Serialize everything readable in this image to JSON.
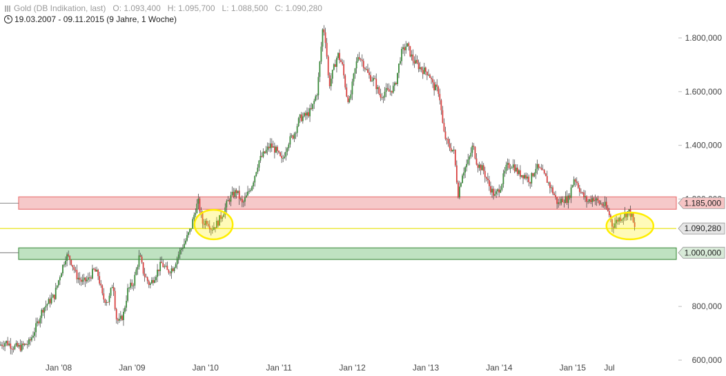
{
  "header": {
    "icon": "candlestick-icon",
    "instrument": "Gold (DB Indikation, last)",
    "ohlc": "O: 1.093,400   H: 1.095,700   L: 1.088,500   C: 1.090,280",
    "range_icon": "clock-icon",
    "range": "19.03.2007 - 09.11.2015 (9 Jahre, 1 Woche)"
  },
  "chart_data": {
    "type": "candlestick",
    "title": "Gold (DB Indikation, last)",
    "interval": "1 Woche",
    "x_range": [
      "2007-03-19",
      "2015-11-09"
    ],
    "ylim": [
      600000,
      1930000
    ],
    "y_ticks": [
      {
        "value": 800000,
        "label": "800,000"
      },
      {
        "value": 1000000,
        "label": "1.000,000"
      },
      {
        "value": 1200000,
        "label": "1.200,000"
      },
      {
        "value": 1400000,
        "label": "1.400,000"
      },
      {
        "value": 1600000,
        "label": "1.600,000"
      },
      {
        "value": 1800000,
        "label": "1.800,000"
      },
      {
        "value": 600000,
        "label": "600,000"
      }
    ],
    "x_ticks": [
      {
        "value": 2008.0,
        "label": "Jan '08"
      },
      {
        "value": 2009.0,
        "label": "Jan '09"
      },
      {
        "value": 2010.0,
        "label": "Jan '10"
      },
      {
        "value": 2011.0,
        "label": "Jan '11"
      },
      {
        "value": 2012.0,
        "label": "Jan '12"
      },
      {
        "value": 2013.0,
        "label": "Jan '13"
      },
      {
        "value": 2014.0,
        "label": "Jan '14"
      },
      {
        "value": 2015.0,
        "label": "Jan '15"
      },
      {
        "value": 2015.5,
        "label": "Jul"
      }
    ],
    "price_path": [
      [
        2007.21,
        655
      ],
      [
        2007.3,
        668
      ],
      [
        2007.4,
        650
      ],
      [
        2007.5,
        648
      ],
      [
        2007.62,
        665
      ],
      [
        2007.72,
        730
      ],
      [
        2007.8,
        790
      ],
      [
        2007.88,
        815
      ],
      [
        2007.96,
        840
      ],
      [
        2008.04,
        920
      ],
      [
        2008.12,
        990
      ],
      [
        2008.18,
        975
      ],
      [
        2008.26,
        915
      ],
      [
        2008.34,
        890
      ],
      [
        2008.42,
        900
      ],
      [
        2008.5,
        935
      ],
      [
        2008.56,
        915
      ],
      [
        2008.62,
        830
      ],
      [
        2008.7,
        820
      ],
      [
        2008.76,
        895
      ],
      [
        2008.8,
        760
      ],
      [
        2008.84,
        740
      ],
      [
        2008.9,
        770
      ],
      [
        2008.96,
        860
      ],
      [
        2009.04,
        890
      ],
      [
        2009.12,
        990
      ],
      [
        2009.18,
        920
      ],
      [
        2009.26,
        880
      ],
      [
        2009.34,
        920
      ],
      [
        2009.42,
        960
      ],
      [
        2009.5,
        930
      ],
      [
        2009.58,
        945
      ],
      [
        2009.66,
        1000
      ],
      [
        2009.74,
        1040
      ],
      [
        2009.82,
        1090
      ],
      [
        2009.88,
        1160
      ],
      [
        2009.92,
        1190
      ],
      [
        2009.98,
        1110
      ],
      [
        2010.04,
        1120
      ],
      [
        2010.1,
        1090
      ],
      [
        2010.18,
        1110
      ],
      [
        2010.26,
        1150
      ],
      [
        2010.34,
        1200
      ],
      [
        2010.44,
        1230
      ],
      [
        2010.52,
        1180
      ],
      [
        2010.58,
        1210
      ],
      [
        2010.66,
        1260
      ],
      [
        2010.74,
        1340
      ],
      [
        2010.82,
        1370
      ],
      [
        2010.9,
        1400
      ],
      [
        2010.98,
        1380
      ],
      [
        2011.06,
        1340
      ],
      [
        2011.14,
        1410
      ],
      [
        2011.22,
        1440
      ],
      [
        2011.3,
        1500
      ],
      [
        2011.38,
        1510
      ],
      [
        2011.46,
        1530
      ],
      [
        2011.54,
        1600
      ],
      [
        2011.58,
        1720
      ],
      [
        2011.62,
        1850
      ],
      [
        2011.66,
        1780
      ],
      [
        2011.7,
        1620
      ],
      [
        2011.76,
        1680
      ],
      [
        2011.82,
        1740
      ],
      [
        2011.88,
        1700
      ],
      [
        2011.94,
        1590
      ],
      [
        2011.98,
        1560
      ],
      [
        2012.04,
        1660
      ],
      [
        2012.1,
        1740
      ],
      [
        2012.16,
        1710
      ],
      [
        2012.24,
        1660
      ],
      [
        2012.32,
        1640
      ],
      [
        2012.4,
        1580
      ],
      [
        2012.46,
        1600
      ],
      [
        2012.52,
        1600
      ],
      [
        2012.6,
        1620
      ],
      [
        2012.68,
        1740
      ],
      [
        2012.76,
        1775
      ],
      [
        2012.84,
        1720
      ],
      [
        2012.9,
        1700
      ],
      [
        2012.98,
        1680
      ],
      [
        2013.06,
        1670
      ],
      [
        2013.12,
        1620
      ],
      [
        2013.2,
        1600
      ],
      [
        2013.26,
        1450
      ],
      [
        2013.32,
        1400
      ],
      [
        2013.4,
        1380
      ],
      [
        2013.46,
        1220
      ],
      [
        2013.52,
        1300
      ],
      [
        2013.6,
        1340
      ],
      [
        2013.66,
        1400
      ],
      [
        2013.72,
        1330
      ],
      [
        2013.8,
        1310
      ],
      [
        2013.88,
        1250
      ],
      [
        2013.96,
        1210
      ],
      [
        2014.04,
        1250
      ],
      [
        2014.12,
        1320
      ],
      [
        2014.2,
        1330
      ],
      [
        2014.28,
        1295
      ],
      [
        2014.36,
        1290
      ],
      [
        2014.44,
        1270
      ],
      [
        2014.52,
        1320
      ],
      [
        2014.6,
        1300
      ],
      [
        2014.68,
        1265
      ],
      [
        2014.76,
        1220
      ],
      [
        2014.82,
        1180
      ],
      [
        2014.88,
        1200
      ],
      [
        2014.96,
        1200
      ],
      [
        2015.04,
        1280
      ],
      [
        2015.08,
        1260
      ],
      [
        2015.14,
        1220
      ],
      [
        2015.22,
        1190
      ],
      [
        2015.3,
        1205
      ],
      [
        2015.38,
        1185
      ],
      [
        2015.46,
        1175
      ],
      [
        2015.52,
        1140
      ],
      [
        2015.56,
        1100
      ],
      [
        2015.64,
        1125
      ],
      [
        2015.72,
        1140
      ],
      [
        2015.78,
        1155
      ],
      [
        2015.82,
        1140
      ],
      [
        2015.86,
        1090
      ]
    ],
    "horizontal_levels": [
      {
        "value": 1185000,
        "label": "1.185,000",
        "zone": [
          1162000,
          1208000
        ],
        "color": "#e8696a",
        "fill": "#f6c4c4"
      },
      {
        "value": 1090280,
        "label": "1.090,280",
        "color": "#e6e000"
      },
      {
        "value": 1000000,
        "label": "1.000,000",
        "zone": [
          975000,
          1018000
        ],
        "color": "#3a8a3a",
        "fill": "#b9dfbb"
      }
    ],
    "highlights": [
      {
        "shape": "ellipse",
        "x": [
          2009.85,
          2010.37
        ],
        "y": [
          1050000,
          1160000
        ],
        "color": "#ffee00"
      },
      {
        "shape": "ellipse",
        "x": [
          2015.46,
          2016.1
        ],
        "y": [
          1050000,
          1150000
        ],
        "color": "#ffee00"
      }
    ],
    "colors": {
      "up": "#3a8a3a",
      "down": "#d8403f",
      "gridline": "#cccccc"
    }
  }
}
